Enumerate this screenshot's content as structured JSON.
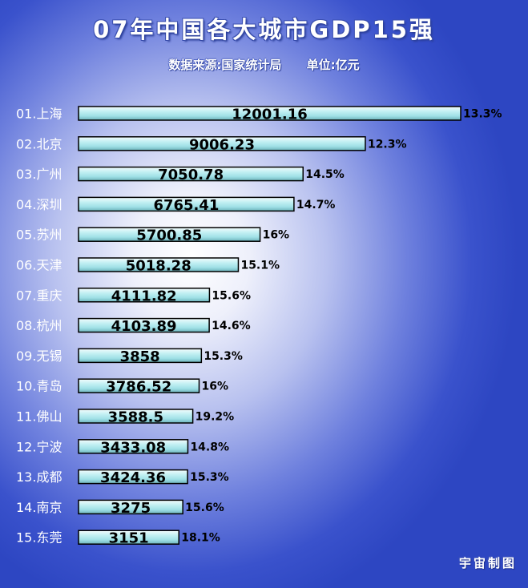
{
  "chart_data": {
    "type": "bar",
    "orientation": "horizontal",
    "title": "07年中国各大城市GDP15强",
    "subtitle": "数据来源:国家统计局      单位:亿元",
    "categories": [
      "01.上海",
      "02.北京",
      "03.广州",
      "04.深圳",
      "05.苏州",
      "06.天津",
      "07.重庆",
      "08.杭州",
      "09.无锡",
      "10.青岛",
      "11.佛山",
      "12.宁波",
      "13.成都",
      "14.南京",
      "15.东莞"
    ],
    "value_labels": [
      "12001.16",
      "9006.23",
      "7050.78",
      "6765.41",
      "5700.85",
      "5018.28",
      "4111.82",
      "4103.89",
      "3858",
      "3786.52",
      "3588.5",
      "3433.08",
      "3424.36",
      "3275",
      "3151"
    ],
    "values": [
      12001.16,
      9006.23,
      7050.78,
      6765.41,
      5700.85,
      5018.28,
      4111.82,
      4103.89,
      3858,
      3786.52,
      3588.5,
      3433.08,
      3424.36,
      3275,
      3151
    ],
    "growth_labels": [
      "13.3%",
      "12.3%",
      "14.5%",
      "14.7%",
      "16%",
      "15.1%",
      "15.6%",
      "14.6%",
      "15.3%",
      "16%",
      "19.2%",
      "14.8%",
      "15.3%",
      "15.6%",
      "18.1%"
    ],
    "bar_color": "#a9e8ec",
    "xlim": [
      0,
      12001.16
    ],
    "grid": false,
    "legend": "none"
  },
  "credit": "宇宙制图"
}
